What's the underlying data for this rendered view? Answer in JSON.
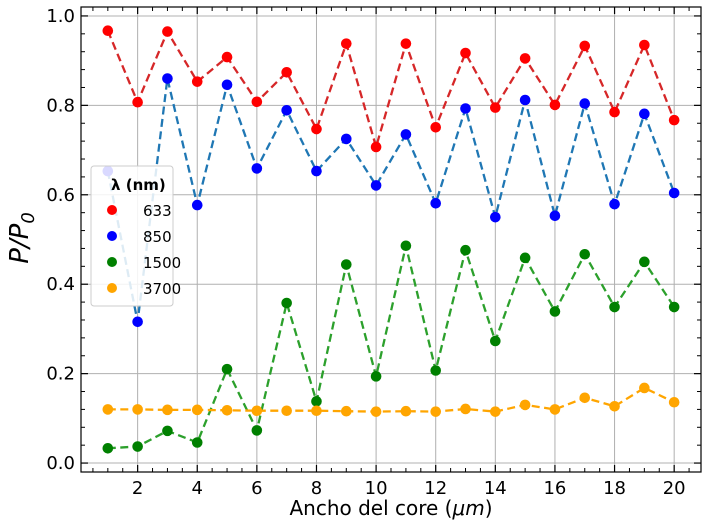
{
  "chart_data": {
    "type": "line",
    "title": "",
    "xlabel": "Ancho del core",
    "xlabel_unit": "μm",
    "ylabel": "P/P",
    "ylabel_sub": "0",
    "xlim": [
      0.1,
      20.9
    ],
    "ylim": [
      -0.02,
      1.02
    ],
    "grid": true,
    "xticks": [
      2,
      4,
      6,
      8,
      10,
      12,
      14,
      16,
      18,
      20
    ],
    "yticks": [
      0.0,
      0.2,
      0.4,
      0.6,
      0.8,
      1.0
    ],
    "x": [
      1,
      2,
      3,
      4,
      5,
      6,
      7,
      8,
      9,
      10,
      11,
      12,
      13,
      14,
      15,
      16,
      17,
      18,
      19,
      20
    ],
    "legend": {
      "title": "λ (nm)",
      "placement": "center-left"
    },
    "series": [
      {
        "name": "633",
        "color": "#d62728",
        "marker": "#ff0000",
        "values": [
          0.967,
          0.807,
          0.965,
          0.853,
          0.908,
          0.808,
          0.874,
          0.747,
          0.938,
          0.707,
          0.938,
          0.751,
          0.917,
          0.795,
          0.905,
          0.801,
          0.933,
          0.785,
          0.935,
          0.767
        ]
      },
      {
        "name": "850",
        "color": "#1f77b4",
        "marker": "#0000ff",
        "values": [
          0.653,
          0.316,
          0.86,
          0.577,
          0.846,
          0.659,
          0.789,
          0.653,
          0.725,
          0.621,
          0.735,
          0.581,
          0.793,
          0.55,
          0.812,
          0.553,
          0.804,
          0.579,
          0.781,
          0.604
        ]
      },
      {
        "name": "1500",
        "color": "#2ca02c",
        "marker": "#008000",
        "values": [
          0.033,
          0.037,
          0.072,
          0.046,
          0.21,
          0.073,
          0.358,
          0.138,
          0.444,
          0.194,
          0.486,
          0.207,
          0.476,
          0.273,
          0.459,
          0.339,
          0.467,
          0.349,
          0.45,
          0.349
        ]
      },
      {
        "name": "3700",
        "color": "#ffa500",
        "marker": "#ffa500",
        "values": [
          0.12,
          0.12,
          0.119,
          0.119,
          0.118,
          0.117,
          0.117,
          0.117,
          0.116,
          0.115,
          0.116,
          0.115,
          0.121,
          0.115,
          0.13,
          0.12,
          0.146,
          0.127,
          0.168,
          0.136
        ]
      }
    ]
  }
}
